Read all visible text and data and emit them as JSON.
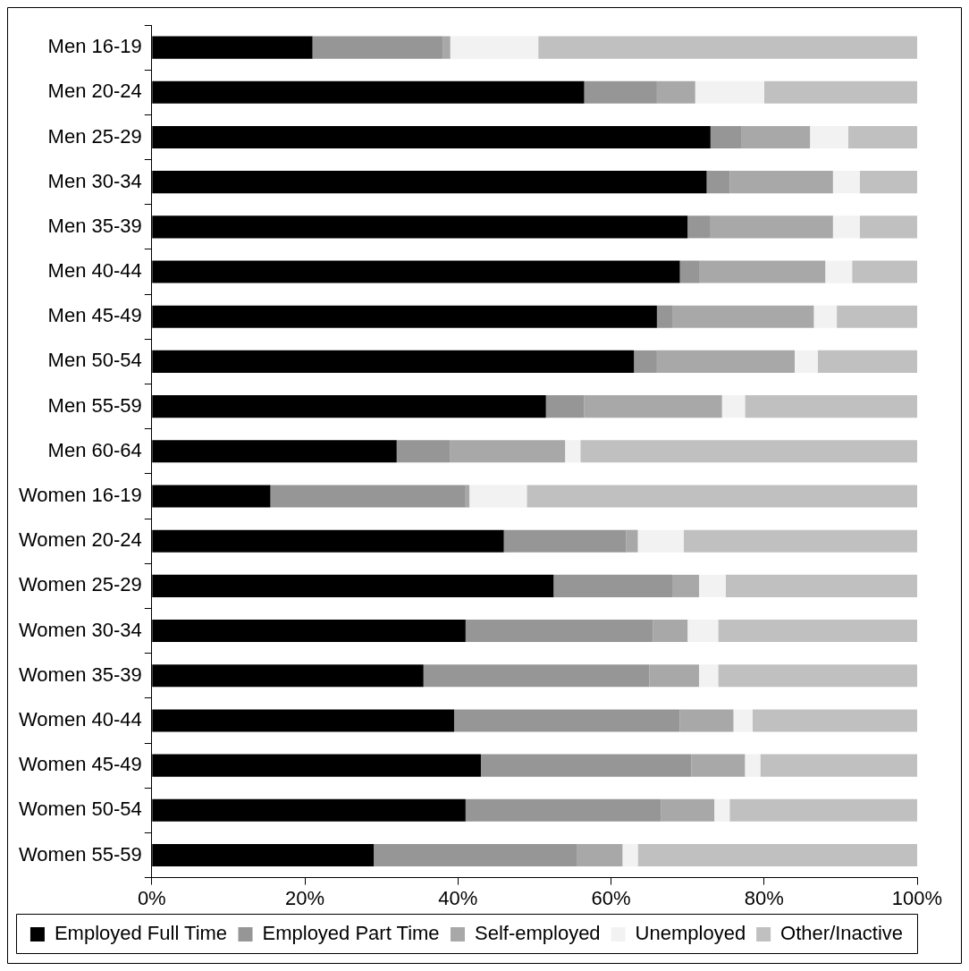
{
  "chart_data": {
    "type": "bar",
    "orientation": "horizontal",
    "stacked": true,
    "grid": false,
    "legend": "bottom",
    "categories": [
      "Men 16-19",
      "Men 20-24",
      "Men 25-29",
      "Men 30-34",
      "Men 35-39",
      "Men 40-44",
      "Men 45-49",
      "Men 50-54",
      "Men 55-59",
      "Men 60-64",
      "Women 16-19",
      "Women 20-24",
      "Women 25-29",
      "Women 30-34",
      "Women 35-39",
      "Women 40-44",
      "Women 45-49",
      "Women 50-54",
      "Women 55-59"
    ],
    "xlim": [
      0,
      100
    ],
    "xticks": [
      {
        "value": 0,
        "label": "0%"
      },
      {
        "value": 20,
        "label": "20%"
      },
      {
        "value": 40,
        "label": "40%"
      },
      {
        "value": 60,
        "label": "60%"
      },
      {
        "value": 80,
        "label": "80%"
      },
      {
        "value": 100,
        "label": "100%"
      }
    ],
    "series": [
      {
        "name": "Employed Full Time",
        "color": "#000000",
        "values": [
          21,
          56.5,
          73,
          72.5,
          70,
          69,
          66,
          63,
          51.5,
          32,
          15.5,
          46,
          52.5,
          41,
          35.5,
          39.5,
          43,
          41,
          29
        ]
      },
      {
        "name": "Employed Part Time",
        "color": "#969696",
        "values": [
          17,
          9.5,
          4,
          3,
          3,
          2.5,
          2,
          3,
          5,
          7,
          25.5,
          16,
          15.5,
          24.5,
          29.5,
          29.5,
          27.5,
          25.5,
          26.5
        ]
      },
      {
        "name": "Self-employed",
        "color": "#a8a8a8",
        "values": [
          1,
          5,
          9,
          13.5,
          16,
          16.5,
          18.5,
          18,
          18,
          15,
          0.5,
          1.5,
          3.5,
          4.5,
          6.5,
          7,
          7,
          7,
          6
        ]
      },
      {
        "name": "Unemployed",
        "color": "#f2f2f2",
        "values": [
          11.5,
          9,
          5,
          3.5,
          3.5,
          3.5,
          3,
          3,
          3,
          2,
          7.5,
          6,
          3.5,
          4,
          2.5,
          2.5,
          2,
          2,
          2
        ]
      },
      {
        "name": "Other/Inactive",
        "color": "#c0c0c0",
        "values": [
          49.5,
          20,
          9,
          7.5,
          7.5,
          8.5,
          10.5,
          13,
          22.5,
          44,
          51,
          30.5,
          25,
          26,
          26,
          21.5,
          20.5,
          24.5,
          36.5
        ]
      }
    ]
  }
}
